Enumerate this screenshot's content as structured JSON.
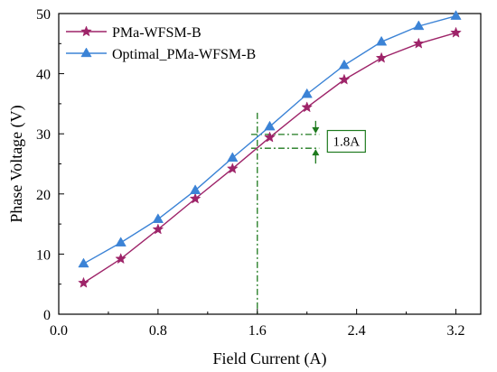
{
  "chart_data": {
    "type": "line",
    "xlabel": "Field Current (A)",
    "ylabel": "Phase Voltage (V)",
    "xlim": [
      0.0,
      3.4
    ],
    "ylim": [
      0,
      50
    ],
    "x_ticks": [
      "0.0",
      "0.8",
      "1.6",
      "2.4",
      "3.2"
    ],
    "y_ticks": [
      "0",
      "10",
      "20",
      "30",
      "40",
      "50"
    ],
    "legend_placement": "top-left",
    "grid": false,
    "series": [
      {
        "name": "PMa-WFSM-B",
        "marker": "star",
        "color": "#9e2469",
        "x": [
          0.2,
          0.5,
          0.8,
          1.1,
          1.4,
          1.7,
          2.0,
          2.3,
          2.6,
          2.9,
          3.2
        ],
        "y": [
          5.2,
          9.2,
          14.1,
          19.2,
          24.2,
          29.4,
          34.4,
          39.0,
          42.6,
          45.0,
          46.8
        ]
      },
      {
        "name": "Optimal_PMa-WFSM-B",
        "marker": "triangle",
        "color": "#3b83d6",
        "x": [
          0.2,
          0.5,
          0.8,
          1.1,
          1.4,
          1.7,
          2.0,
          2.3,
          2.6,
          2.9,
          3.2
        ],
        "y": [
          8.4,
          11.9,
          15.8,
          20.6,
          26.0,
          31.2,
          36.6,
          41.4,
          45.3,
          47.9,
          49.6
        ]
      }
    ],
    "annotation": {
      "text": "1.8A",
      "color": "#1e7a1e",
      "vline_x": 1.6,
      "upper_y": 29.9,
      "lower_y": 27.6,
      "arrow_x": 2.07
    }
  }
}
